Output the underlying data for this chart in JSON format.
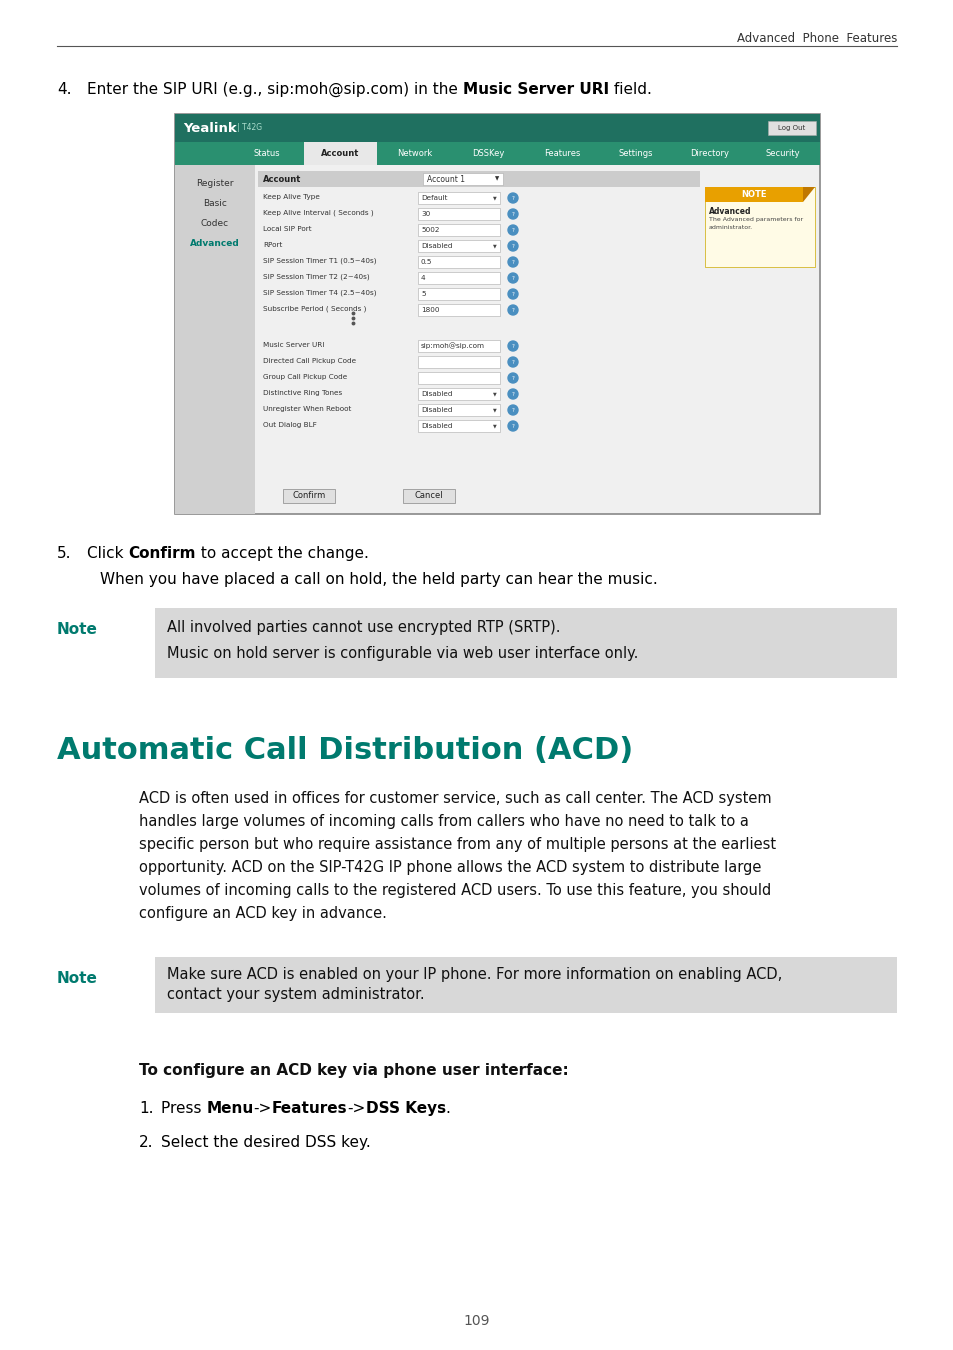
{
  "page_bg": "#ffffff",
  "header_text": "Advanced  Phone  Features",
  "page_number": "109",
  "teal_color": "#007a6e",
  "note_label_color": "#007a6e",
  "note_bg": "#d8d8d8",
  "step4_prefix": "Enter the SIP URI (e.g., sip:moh@sip.com) in the ",
  "step4_bold": "Music Server URI",
  "step4_suffix": " field.",
  "step5_prefix": "Click ",
  "step5_bold": "Confirm",
  "step5_suffix": " to accept the change.",
  "step5_desc": "When you have placed a call on hold, the held party can hear the music.",
  "note1_line1": "All involved parties cannot use encrypted RTP (SRTP).",
  "note1_line2": "Music on hold server is configurable via web user interface only.",
  "section_title": "Automatic Call Distribution (ACD)",
  "body_lines": [
    "ACD is often used in offices for customer service, such as call center. The ACD system",
    "handles large volumes of incoming calls from callers who have no need to talk to a",
    "specific person but who require assistance from any of multiple persons at the earliest",
    "opportunity. ACD on the SIP-T42G IP phone allows the ACD system to distribute large",
    "volumes of incoming calls to the registered ACD users. To use this feature, you should",
    "configure an ACD key in advance."
  ],
  "note2_line1": "Make sure ACD is enabled on your IP phone. For more information on enabling ACD,",
  "note2_line2": "contact your system administrator.",
  "configure_title": "To configure an ACD key via phone user interface:",
  "ss_fields_top": [
    [
      "Keep Alive Type",
      "Default",
      true
    ],
    [
      "Keep Alive Interval ( Seconds )",
      "30",
      false
    ],
    [
      "Local SIP Port",
      "5002",
      false
    ],
    [
      "RPort",
      "Disabled",
      true
    ],
    [
      "SIP Session Timer T1 (0.5~40s)",
      "0.5",
      false
    ],
    [
      "SIP Session Timer T2 (2~40s)",
      "4",
      false
    ],
    [
      "SIP Session Timer T4 (2.5~40s)",
      "5",
      false
    ],
    [
      "Subscribe Period ( Seconds )",
      "1800",
      false
    ]
  ],
  "ss_fields_bottom": [
    [
      "Music Server URI",
      "sip:moh@sip.com",
      false
    ],
    [
      "Directed Call Pickup Code",
      "",
      false
    ],
    [
      "Group Call Pickup Code",
      "",
      false
    ],
    [
      "Distinctive Ring Tones",
      "Disabled",
      true
    ],
    [
      "Unregister When Reboot",
      "Disabled",
      true
    ],
    [
      "Out Dialog BLF",
      "Disabled",
      true
    ]
  ],
  "nav_tabs": [
    "Status",
    "Account",
    "Network",
    "DSSKey",
    "Features",
    "Settings",
    "Directory",
    "Security"
  ],
  "sidebar_items": [
    "Register",
    "Basic",
    "Codec",
    "Advanced"
  ]
}
